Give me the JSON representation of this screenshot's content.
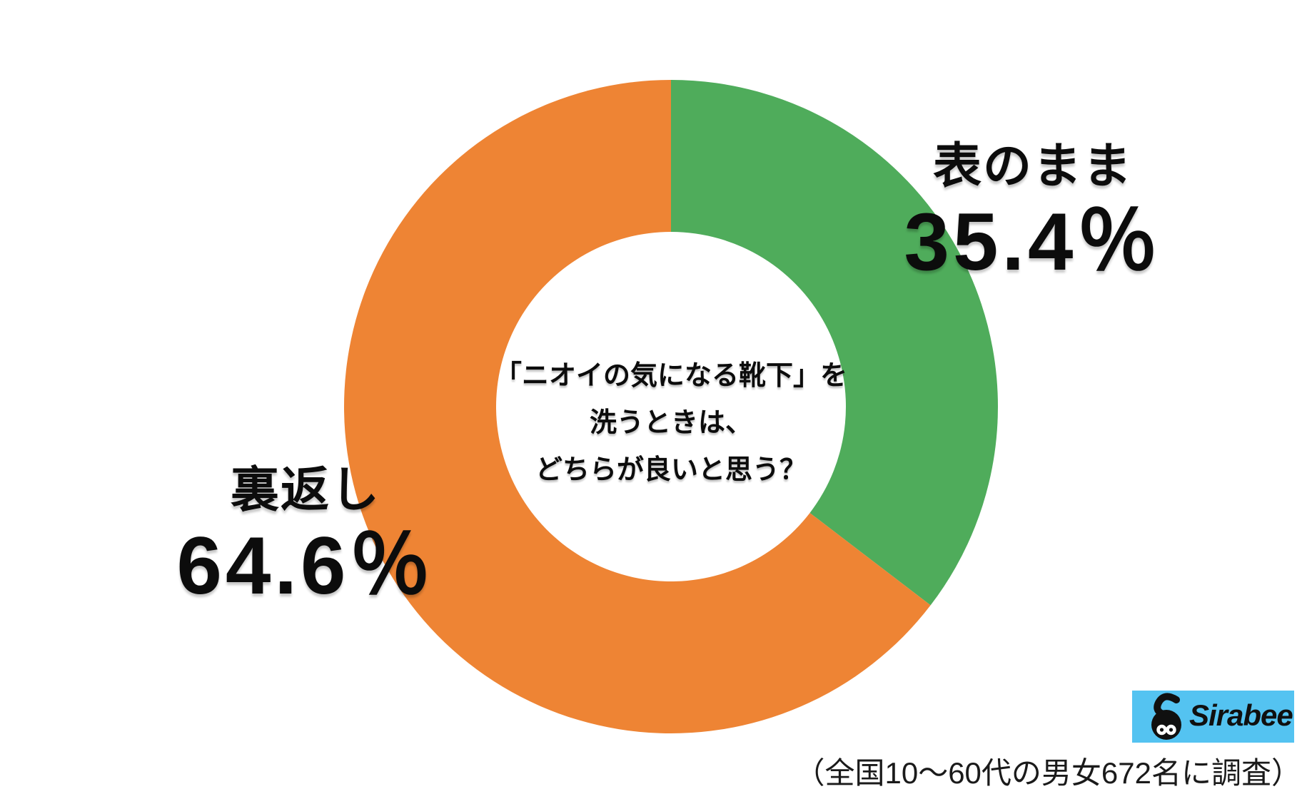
{
  "page": {
    "background": "#ffffff"
  },
  "chart_data": {
    "type": "pie",
    "subtype": "donut",
    "question_full": "「ニオイの気になる靴下」を洗うときは、どちらが良いと思う？",
    "question_lines": [
      "「ニオイの気になる靴下」を",
      "洗うときは、",
      "どちらが良いと思う？"
    ],
    "categories": [
      "表のまま",
      "裏返し"
    ],
    "values": [
      35.4,
      64.6
    ],
    "unit": "%",
    "colors": [
      "#4FAC5B",
      "#EE8434"
    ],
    "start_angle": "top (12 o'clock)",
    "direction": "clockwise",
    "legend_position": "none",
    "labels": [
      {
        "category": "表のまま",
        "value_text": "35.4％"
      },
      {
        "category": "裏返し",
        "value_text": "64.6％"
      }
    ],
    "footnote": "（全国10〜60代の男女672名に調査）"
  },
  "branding": {
    "logo_text": "Sirabee",
    "logo_bg": "#54C3F1",
    "logo_fg": "#111111"
  }
}
